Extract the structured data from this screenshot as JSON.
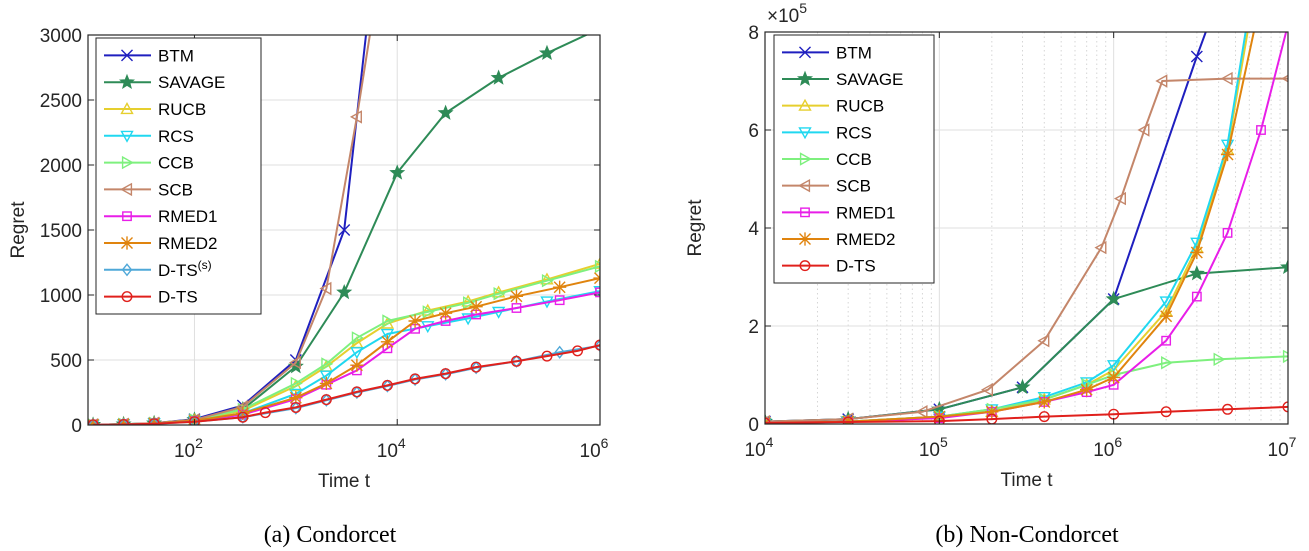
{
  "chart_data": [
    {
      "type": "line",
      "caption": "(a) Condorcet",
      "xlabel": "Time t",
      "ylabel": "Regret",
      "xscale": "log",
      "xlim_log10": [
        0.95,
        6
      ],
      "ylim": [
        0,
        3000
      ],
      "xticks_log10": [
        2,
        4,
        6
      ],
      "xtick_labels": [
        {
          "base": "10",
          "exp": "2"
        },
        {
          "base": "10",
          "exp": "4"
        },
        {
          "base": "10",
          "exp": "6"
        }
      ],
      "yticks": [
        0,
        500,
        1000,
        1500,
        2000,
        2500,
        3000
      ],
      "ytick_labels": [
        "0",
        "500",
        "1000",
        "1500",
        "2000",
        "2500",
        "3000"
      ],
      "legend_position": "top-left",
      "series": [
        {
          "name": "BTM",
          "color": "#1f1fbf",
          "marker": "x",
          "points": [
            [
              10,
              2
            ],
            [
              20,
              6
            ],
            [
              40,
              14
            ],
            [
              100,
              45
            ],
            [
              300,
              150
            ],
            [
              1000,
              500
            ],
            [
              3000,
              1500
            ],
            [
              5000,
              3050
            ]
          ]
        },
        {
          "name": "SAVAGE",
          "color": "#2e8b57",
          "marker": "star",
          "points": [
            [
              10,
              2
            ],
            [
              20,
              6
            ],
            [
              40,
              14
            ],
            [
              100,
              40
            ],
            [
              300,
              120
            ],
            [
              1000,
              450
            ],
            [
              3000,
              1020
            ],
            [
              10000,
              1940
            ],
            [
              30000,
              2400
            ],
            [
              100000,
              2670
            ],
            [
              300000,
              2860
            ],
            [
              1000000,
              3050
            ]
          ]
        },
        {
          "name": "RUCB",
          "color": "#e6cf2e",
          "marker": "tri-up",
          "points": [
            [
              10,
              2
            ],
            [
              20,
              6
            ],
            [
              40,
              14
            ],
            [
              100,
              38
            ],
            [
              300,
              110
            ],
            [
              1000,
              300
            ],
            [
              2000,
              450
            ],
            [
              4000,
              630
            ],
            [
              8000,
              780
            ],
            [
              20000,
              880
            ],
            [
              50000,
              950
            ],
            [
              100000,
              1020
            ],
            [
              300000,
              1120
            ],
            [
              1000000,
              1240
            ]
          ]
        },
        {
          "name": "RCS",
          "color": "#20d8f0",
          "marker": "tri-down",
          "points": [
            [
              10,
              2
            ],
            [
              20,
              6
            ],
            [
              40,
              14
            ],
            [
              100,
              32
            ],
            [
              300,
              90
            ],
            [
              1000,
              240
            ],
            [
              2000,
              380
            ],
            [
              4000,
              560
            ],
            [
              8000,
              700
            ],
            [
              20000,
              760
            ],
            [
              50000,
              820
            ],
            [
              100000,
              870
            ],
            [
              300000,
              950
            ],
            [
              1000000,
              1030
            ]
          ]
        },
        {
          "name": "CCB",
          "color": "#7ef07e",
          "marker": "tri-right",
          "points": [
            [
              10,
              2
            ],
            [
              20,
              6
            ],
            [
              40,
              14
            ],
            [
              100,
              40
            ],
            [
              300,
              120
            ],
            [
              1000,
              320
            ],
            [
              2000,
              470
            ],
            [
              4000,
              670
            ],
            [
              8000,
              800
            ],
            [
              20000,
              870
            ],
            [
              50000,
              940
            ],
            [
              100000,
              1010
            ],
            [
              300000,
              1110
            ],
            [
              1000000,
              1220
            ]
          ]
        },
        {
          "name": "SCB",
          "color": "#c4866a",
          "marker": "tri-left",
          "points": [
            [
              10,
              2
            ],
            [
              20,
              6
            ],
            [
              40,
              14
            ],
            [
              100,
              40
            ],
            [
              300,
              140
            ],
            [
              1000,
              480
            ],
            [
              2000,
              1050
            ],
            [
              4000,
              2370
            ],
            [
              5500,
              3050
            ]
          ]
        },
        {
          "name": "RMED1",
          "color": "#e81ee8",
          "marker": "square",
          "points": [
            [
              10,
              2
            ],
            [
              20,
              5
            ],
            [
              40,
              12
            ],
            [
              100,
              30
            ],
            [
              300,
              80
            ],
            [
              1000,
              200
            ],
            [
              2000,
              310
            ],
            [
              4000,
              420
            ],
            [
              8000,
              590
            ],
            [
              15000,
              740
            ],
            [
              30000,
              800
            ],
            [
              60000,
              850
            ],
            [
              150000,
              900
            ],
            [
              400000,
              960
            ],
            [
              1000000,
              1020
            ]
          ]
        },
        {
          "name": "RMED2",
          "color": "#e0840e",
          "marker": "asterisk",
          "points": [
            [
              10,
              2
            ],
            [
              20,
              5
            ],
            [
              40,
              12
            ],
            [
              100,
              32
            ],
            [
              300,
              90
            ],
            [
              1000,
              210
            ],
            [
              2000,
              320
            ],
            [
              4000,
              460
            ],
            [
              8000,
              640
            ],
            [
              15000,
              800
            ],
            [
              30000,
              860
            ],
            [
              60000,
              910
            ],
            [
              150000,
              990
            ],
            [
              400000,
              1060
            ],
            [
              1000000,
              1130
            ]
          ]
        },
        {
          "name": "D-TS(s)",
          "name_base": "D-TS",
          "name_sup": "(s)",
          "color": "#4fa8d8",
          "marker": "diamond",
          "points": [
            [
              10,
              2
            ],
            [
              20,
              4
            ],
            [
              40,
              10
            ],
            [
              100,
              25
            ],
            [
              300,
              60
            ],
            [
              1000,
              130
            ],
            [
              2000,
              190
            ],
            [
              4000,
              250
            ],
            [
              8000,
              300
            ],
            [
              15000,
              350
            ],
            [
              30000,
              390
            ],
            [
              60000,
              440
            ],
            [
              150000,
              490
            ],
            [
              400000,
              560
            ],
            [
              1000000,
              610
            ]
          ]
        },
        {
          "name": "D-TS",
          "color": "#e0201c",
          "marker": "circle",
          "points": [
            [
              10,
              2
            ],
            [
              20,
              4
            ],
            [
              40,
              10
            ],
            [
              100,
              25
            ],
            [
              300,
              60
            ],
            [
              500,
              95
            ],
            [
              1000,
              135
            ],
            [
              2000,
              195
            ],
            [
              4000,
              255
            ],
            [
              8000,
              305
            ],
            [
              15000,
              355
            ],
            [
              30000,
              395
            ],
            [
              60000,
              445
            ],
            [
              150000,
              490
            ],
            [
              300000,
              530
            ],
            [
              600000,
              570
            ],
            [
              1000000,
              615
            ]
          ]
        }
      ]
    },
    {
      "type": "line",
      "caption": "(b) Non-Condorcet",
      "xlabel": "Time t",
      "ylabel": "Regret",
      "xscale": "log",
      "xlim_log10": [
        4,
        7
      ],
      "ylim": [
        0,
        8
      ],
      "y_multiplier": {
        "base": "×10",
        "exp": "5"
      },
      "xticks_log10": [
        4,
        5,
        6,
        7
      ],
      "xtick_labels": [
        {
          "base": "10",
          "exp": "4"
        },
        {
          "base": "10",
          "exp": "5"
        },
        {
          "base": "10",
          "exp": "6"
        },
        {
          "base": "10",
          "exp": "7"
        }
      ],
      "yticks": [
        0,
        2,
        4,
        6,
        8
      ],
      "ytick_labels": [
        "0",
        "2",
        "4",
        "6",
        "8"
      ],
      "legend_position": "top-left",
      "series": [
        {
          "name": "BTM",
          "color": "#1f1fbf",
          "marker": "x",
          "points": [
            [
              10000,
              0.05
            ],
            [
              30000,
              0.1
            ],
            [
              100000,
              0.3
            ],
            [
              300000,
              0.75
            ],
            [
              1000000,
              2.55
            ],
            [
              3000000,
              7.5
            ],
            [
              3500000,
              8.15
            ]
          ]
        },
        {
          "name": "SAVAGE",
          "color": "#2e8b57",
          "marker": "star",
          "points": [
            [
              10000,
              0.05
            ],
            [
              30000,
              0.1
            ],
            [
              100000,
              0.3
            ],
            [
              300000,
              0.75
            ],
            [
              1000000,
              2.55
            ],
            [
              3000000,
              3.07
            ],
            [
              10000000,
              3.2
            ]
          ]
        },
        {
          "name": "RUCB",
          "color": "#e6cf2e",
          "marker": "tri-up",
          "points": [
            [
              10000,
              0.02
            ],
            [
              30000,
              0.05
            ],
            [
              100000,
              0.15
            ],
            [
              200000,
              0.25
            ],
            [
              400000,
              0.5
            ],
            [
              700000,
              0.8
            ],
            [
              1000000,
              1.1
            ],
            [
              2000000,
              2.3
            ],
            [
              3000000,
              3.6
            ],
            [
              4500000,
              5.6
            ],
            [
              6000000,
              8.2
            ]
          ]
        },
        {
          "name": "RCS",
          "color": "#20d8f0",
          "marker": "tri-down",
          "points": [
            [
              10000,
              0.02
            ],
            [
              30000,
              0.05
            ],
            [
              100000,
              0.15
            ],
            [
              200000,
              0.3
            ],
            [
              400000,
              0.55
            ],
            [
              700000,
              0.85
            ],
            [
              1000000,
              1.2
            ],
            [
              2000000,
              2.5
            ],
            [
              3000000,
              3.7
            ],
            [
              4500000,
              5.7
            ],
            [
              5800000,
              8.15
            ]
          ]
        },
        {
          "name": "CCB",
          "color": "#7ef07e",
          "marker": "tri-right",
          "points": [
            [
              10000,
              0.02
            ],
            [
              30000,
              0.05
            ],
            [
              100000,
              0.15
            ],
            [
              200000,
              0.3
            ],
            [
              400000,
              0.5
            ],
            [
              700000,
              0.8
            ],
            [
              1000000,
              1.0
            ],
            [
              2000000,
              1.25
            ],
            [
              4000000,
              1.32
            ],
            [
              10000000,
              1.38
            ]
          ]
        },
        {
          "name": "SCB",
          "color": "#c4866a",
          "marker": "tri-left",
          "points": [
            [
              10000,
              0.05
            ],
            [
              30000,
              0.1
            ],
            [
              80000,
              0.25
            ],
            [
              190000,
              0.7
            ],
            [
              400000,
              1.7
            ],
            [
              850000,
              3.6
            ],
            [
              1100000,
              4.6
            ],
            [
              1500000,
              6.0
            ],
            [
              1900000,
              7.0
            ],
            [
              4500000,
              7.05
            ],
            [
              10000000,
              7.05
            ]
          ]
        },
        {
          "name": "RMED1",
          "color": "#e81ee8",
          "marker": "square",
          "points": [
            [
              10000,
              0.02
            ],
            [
              30000,
              0.05
            ],
            [
              100000,
              0.12
            ],
            [
              200000,
              0.25
            ],
            [
              400000,
              0.45
            ],
            [
              700000,
              0.65
            ],
            [
              1000000,
              0.8
            ],
            [
              2000000,
              1.7
            ],
            [
              3000000,
              2.6
            ],
            [
              4500000,
              3.9
            ],
            [
              7000000,
              6.0
            ],
            [
              10000000,
              8.15
            ]
          ]
        },
        {
          "name": "RMED2",
          "color": "#e0840e",
          "marker": "asterisk",
          "points": [
            [
              10000,
              0.02
            ],
            [
              30000,
              0.05
            ],
            [
              100000,
              0.15
            ],
            [
              200000,
              0.25
            ],
            [
              400000,
              0.45
            ],
            [
              700000,
              0.7
            ],
            [
              1000000,
              0.95
            ],
            [
              2000000,
              2.2
            ],
            [
              3000000,
              3.5
            ],
            [
              4500000,
              5.5
            ],
            [
              6500000,
              8.15
            ]
          ]
        },
        {
          "name": "D-TS",
          "color": "#e0201c",
          "marker": "circle",
          "points": [
            [
              10000,
              0.02
            ],
            [
              30000,
              0.04
            ],
            [
              100000,
              0.06
            ],
            [
              200000,
              0.1
            ],
            [
              400000,
              0.15
            ],
            [
              1000000,
              0.2
            ],
            [
              2000000,
              0.25
            ],
            [
              4500000,
              0.3
            ],
            [
              10000000,
              0.35
            ]
          ]
        }
      ]
    }
  ]
}
